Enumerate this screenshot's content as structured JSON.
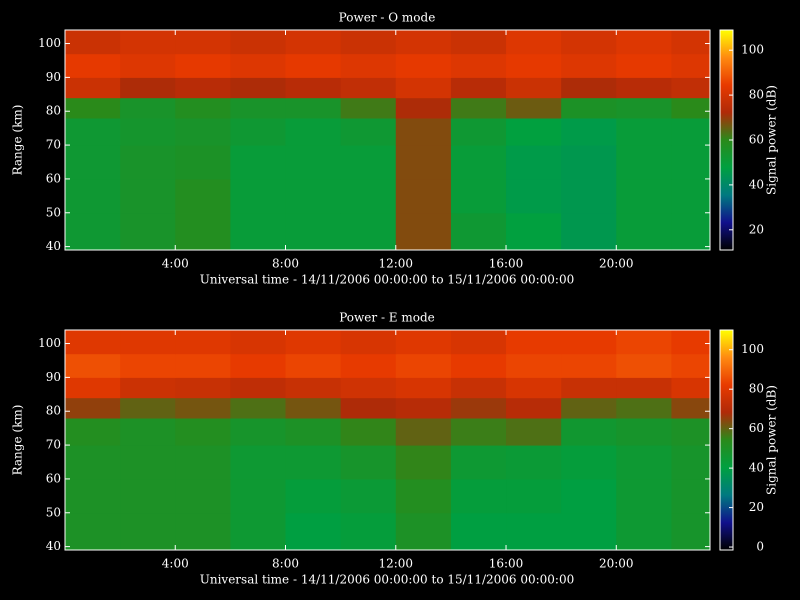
{
  "chart_data": [
    {
      "type": "heatmap",
      "title": "Power - O mode",
      "xlabel": "Universal time - 14/11/2006 00:00:00 to 15/11/2006 00:00:00",
      "ylabel": "Range (km)",
      "colorbar_label": "Signal power (dB)",
      "xlim": [
        0,
        23.4
      ],
      "ylim": [
        39,
        104
      ],
      "xticks": [
        {
          "value": 4,
          "label": "4:00"
        },
        {
          "value": 8,
          "label": "8:00"
        },
        {
          "value": 12,
          "label": "12:00"
        },
        {
          "value": 16,
          "label": "16:00"
        },
        {
          "value": 20,
          "label": "20:00"
        }
      ],
      "yticks": [
        40,
        50,
        60,
        70,
        80,
        90,
        100
      ],
      "x_bins": [
        0,
        2,
        4,
        6,
        8,
        10,
        12,
        14,
        16,
        18,
        20,
        22,
        23.4
      ],
      "y_bins": [
        39,
        50,
        60,
        70,
        78,
        84,
        90,
        97,
        104
      ],
      "values": [
        [
          52,
          55,
          58,
          50,
          50,
          50,
          68,
          52,
          48,
          45,
          50,
          50
        ],
        [
          52,
          55,
          58,
          50,
          50,
          50,
          68,
          50,
          46,
          45,
          50,
          50
        ],
        [
          52,
          55,
          56,
          50,
          50,
          50,
          68,
          50,
          46,
          45,
          50,
          50
        ],
        [
          52,
          54,
          55,
          52,
          50,
          52,
          68,
          52,
          48,
          46,
          50,
          50
        ],
        [
          60,
          55,
          58,
          55,
          55,
          62,
          72,
          62,
          66,
          56,
          55,
          60
        ],
        [
          78,
          72,
          74,
          72,
          74,
          76,
          80,
          74,
          78,
          72,
          74,
          76
        ],
        [
          84,
          82,
          84,
          82,
          84,
          82,
          84,
          82,
          84,
          82,
          84,
          82
        ],
        [
          78,
          80,
          80,
          78,
          80,
          78,
          80,
          78,
          82,
          80,
          82,
          80
        ]
      ],
      "zlim": [
        11,
        109
      ],
      "zticks": [
        20,
        40,
        60,
        80,
        100
      ],
      "colorscale": [
        "#000000",
        "#10108c",
        "#007a80",
        "#00a040",
        "#2a8a1a",
        "#b02a08",
        "#e83a00",
        "#ff8a10",
        "#ffff00"
      ]
    },
    {
      "type": "heatmap",
      "title": "Power - E mode",
      "xlabel": "Universal time - 14/11/2006 00:00:00 to 15/11/2006 00:00:00",
      "ylabel": "Range (km)",
      "colorbar_label": "Signal power (dB)",
      "xlim": [
        0,
        23.4
      ],
      "ylim": [
        39,
        104
      ],
      "xticks": [
        {
          "value": 4,
          "label": "4:00"
        },
        {
          "value": 8,
          "label": "8:00"
        },
        {
          "value": 12,
          "label": "12:00"
        },
        {
          "value": 16,
          "label": "16:00"
        },
        {
          "value": 20,
          "label": "20:00"
        }
      ],
      "yticks": [
        40,
        50,
        60,
        70,
        80,
        90,
        100
      ],
      "x_bins": [
        0,
        2,
        4,
        6,
        8,
        10,
        12,
        14,
        16,
        18,
        20,
        22,
        23.4
      ],
      "y_bins": [
        39,
        50,
        60,
        70,
        78,
        84,
        90,
        97,
        104
      ],
      "values": [
        [
          50,
          50,
          50,
          45,
          40,
          42,
          50,
          40,
          40,
          40,
          45,
          48
        ],
        [
          50,
          50,
          50,
          45,
          42,
          44,
          52,
          42,
          42,
          40,
          45,
          48
        ],
        [
          50,
          50,
          50,
          45,
          45,
          48,
          55,
          45,
          44,
          42,
          45,
          48
        ],
        [
          52,
          50,
          52,
          48,
          50,
          55,
          60,
          56,
          58,
          46,
          48,
          50
        ],
        [
          65,
          60,
          62,
          58,
          62,
          68,
          70,
          66,
          70,
          60,
          58,
          64
        ],
        [
          80,
          75,
          74,
          72,
          74,
          76,
          78,
          74,
          78,
          74,
          74,
          78
        ],
        [
          86,
          84,
          84,
          82,
          84,
          82,
          84,
          82,
          84,
          84,
          86,
          84
        ],
        [
          80,
          80,
          80,
          78,
          80,
          78,
          80,
          78,
          82,
          82,
          84,
          82
        ]
      ],
      "zlim": [
        -1.5,
        110
      ],
      "zticks": [
        0,
        20,
        40,
        60,
        80,
        100
      ],
      "colorscale": [
        "#000000",
        "#10108c",
        "#007a80",
        "#00a040",
        "#2a8a1a",
        "#b02a08",
        "#e83a00",
        "#ff8a10",
        "#ffff00"
      ]
    }
  ]
}
